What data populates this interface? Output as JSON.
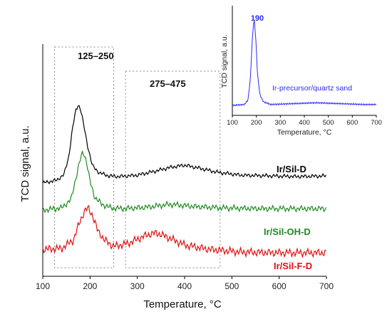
{
  "chart_data": [
    {
      "type": "line",
      "title": "",
      "xlabel": "Temperature, °C",
      "ylabel": "TCD signal, a.u.",
      "xlim": [
        100,
        700
      ],
      "xticks": [
        100,
        200,
        300,
        400,
        500,
        600,
        700
      ],
      "y_ticks_shown": false,
      "grid": false,
      "legend": "direct labels at right",
      "regions": [
        {
          "label": "125–250",
          "x_range": [
            125,
            250
          ]
        },
        {
          "label": "275–475",
          "x_range": [
            275,
            475
          ]
        }
      ],
      "series": [
        {
          "name": "Ir/Sil-D",
          "color": "#000000",
          "noise": 4,
          "x": [
            100,
            130,
            145,
            155,
            163,
            170,
            175,
            180,
            187,
            195,
            205,
            220,
            240,
            260,
            300,
            340,
            370,
            400,
            430,
            470,
            520,
            580,
            640,
            700
          ],
          "y": [
            8,
            12,
            20,
            45,
            85,
            110,
            118,
            112,
            88,
            60,
            32,
            22,
            18,
            17,
            19,
            25,
            30,
            33,
            29,
            23,
            19,
            18,
            17,
            18
          ]
        },
        {
          "name": "Ir/Sil-OH-D",
          "color": "#1f8a1f",
          "noise": 6,
          "x": [
            100,
            140,
            160,
            170,
            178,
            185,
            192,
            200,
            210,
            225,
            245,
            270,
            320,
            370,
            420,
            480,
            560,
            640,
            700
          ],
          "y": [
            0,
            3,
            15,
            45,
            68,
            82,
            70,
            40,
            18,
            8,
            3,
            2,
            4,
            8,
            5,
            3,
            2,
            2,
            2
          ]
        },
        {
          "name": "Ir/Sil-F-D",
          "color": "#e01010",
          "noise": 8,
          "x": [
            100,
            140,
            165,
            178,
            188,
            196,
            205,
            215,
            230,
            250,
            280,
            320,
            340,
            360,
            400,
            450,
            520,
            600,
            700
          ],
          "y": [
            2,
            3,
            15,
            40,
            55,
            60,
            50,
            30,
            15,
            6,
            10,
            22,
            25,
            20,
            8,
            2,
            -2,
            -3,
            -3
          ]
        }
      ]
    },
    {
      "type": "line",
      "title": "",
      "xlabel": "Temperature, °C",
      "ylabel": "TCD signal, a.u.",
      "xlim": [
        100,
        700
      ],
      "xticks": [
        100,
        200,
        300,
        400,
        500,
        600,
        700
      ],
      "peak_label": "190",
      "annotation": "Ir-precursor/quartz sand",
      "series": [
        {
          "name": "Ir-precursor/quartz sand",
          "color": "#2a2aff",
          "noise": 1,
          "x": [
            100,
            150,
            165,
            175,
            182,
            188,
            192,
            198,
            205,
            215,
            230,
            260,
            350,
            450,
            550,
            650,
            700
          ],
          "y": [
            0,
            1,
            6,
            30,
            70,
            95,
            97,
            75,
            35,
            12,
            4,
            1,
            2,
            3,
            2,
            1,
            1
          ]
        }
      ]
    }
  ],
  "labels": {
    "region1": "125–250",
    "region2": "275–475",
    "xlabel": "Temperature, °C",
    "ylabel": "TCD signal, a.u.",
    "series1": "Ir/Sil-D",
    "series2": "Ir/Sil-OH-D",
    "series3": "Ir/Sil-F-D",
    "inset_peak": "190",
    "inset_annotation": "Ir-precursor/quartz sand",
    "inset_xlabel": "Temperature, °C",
    "inset_ylabel": "TCD signal, a.u."
  }
}
